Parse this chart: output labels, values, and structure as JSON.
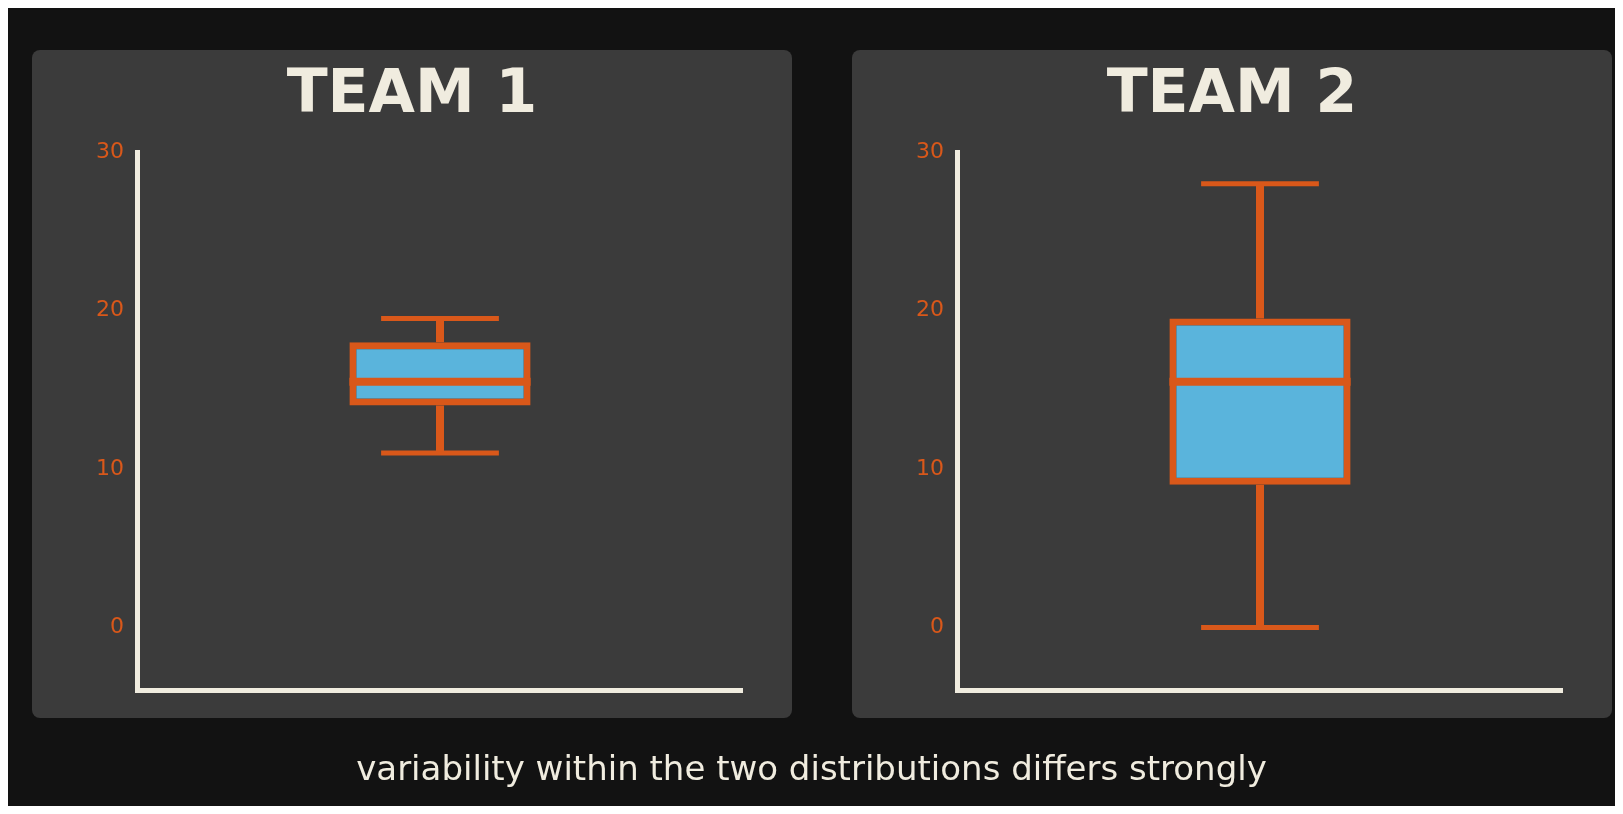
{
  "chart_data": [
    {
      "type": "box",
      "title": "TEAM 1",
      "categories": [
        null
      ],
      "ylim": [
        -4,
        30
      ],
      "yticks": [
        0,
        10,
        20,
        30
      ],
      "tick_labels": "y",
      "grid": false,
      "legend": false,
      "boxes": [
        {
          "low": 11,
          "q1": 14,
          "median": 15.5,
          "q3": 18,
          "high": 19.5
        }
      ]
    },
    {
      "type": "box",
      "title": "TEAM 2",
      "categories": [
        null
      ],
      "ylim": [
        -4,
        30
      ],
      "yticks": [
        0,
        10,
        20,
        30
      ],
      "tick_labels": "y",
      "grid": false,
      "legend": false,
      "boxes": [
        {
          "low": 0,
          "q1": 9,
          "median": 15.5,
          "q3": 19.5,
          "high": 28
        }
      ],
      "annotations": [
        "variability within the two distributions differs strongly"
      ]
    }
  ]
}
